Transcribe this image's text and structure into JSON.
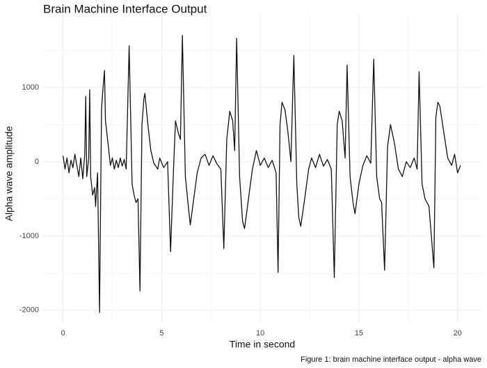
{
  "chart_data": {
    "type": "line",
    "title": "Brain Machine Interface Output",
    "x_label": "Time in second",
    "y_label": "Alpha wave amplitude",
    "caption": "Figure 1: brain machine interface output - alpha wave",
    "xlim": [
      -1.01,
      21.21
    ],
    "ylim": [
      -2170,
      1990
    ],
    "xticks": [
      0,
      5,
      10,
      15,
      20
    ],
    "yticks": [
      -2000,
      -1000,
      0,
      1000
    ],
    "minor_xticks": [
      2.5,
      7.5,
      12.5,
      17.5
    ],
    "minor_yticks": [
      -1500,
      -500,
      500,
      1500
    ],
    "grid": true,
    "x": [
      0,
      0.1,
      0.2,
      0.3,
      0.4,
      0.5,
      0.6,
      0.7,
      0.8,
      0.9,
      1.0,
      1.1,
      1.15,
      1.2,
      1.3,
      1.35,
      1.4,
      1.5,
      1.6,
      1.65,
      1.75,
      1.85,
      1.95,
      2.0,
      2.1,
      2.15,
      2.3,
      2.4,
      2.5,
      2.6,
      2.7,
      2.8,
      2.9,
      3.0,
      3.1,
      3.2,
      3.35,
      3.5,
      3.6,
      3.7,
      3.8,
      3.9,
      4.0,
      4.1,
      4.15,
      4.3,
      4.45,
      4.6,
      4.8,
      4.9,
      5.1,
      5.3,
      5.45,
      5.6,
      5.7,
      5.85,
      5.95,
      6.05,
      6.2,
      6.35,
      6.45,
      6.6,
      6.8,
      7.0,
      7.2,
      7.4,
      7.6,
      7.8,
      8.0,
      8.15,
      8.3,
      8.45,
      8.6,
      8.7,
      8.8,
      8.95,
      9.1,
      9.2,
      9.4,
      9.6,
      9.8,
      10.0,
      10.2,
      10.4,
      10.6,
      10.8,
      10.9,
      11.0,
      11.1,
      11.25,
      11.4,
      11.55,
      11.7,
      11.85,
      11.95,
      12.05,
      12.25,
      12.45,
      12.6,
      12.8,
      13.0,
      13.2,
      13.4,
      13.6,
      13.75,
      13.9,
      14.0,
      14.15,
      14.3,
      14.4,
      14.55,
      14.7,
      14.8,
      15.0,
      15.2,
      15.4,
      15.6,
      15.75,
      15.9,
      16.05,
      16.15,
      16.3,
      16.45,
      16.6,
      16.8,
      17.0,
      17.2,
      17.4,
      17.6,
      17.8,
      17.95,
      18.05,
      18.2,
      18.35,
      18.55,
      18.8,
      18.9,
      19.0,
      19.1,
      19.3,
      19.5,
      19.7,
      19.85,
      20.0,
      20.15
    ],
    "series": [
      {
        "color": "#111111",
        "values": [
          80,
          -100,
          50,
          -150,
          20,
          -80,
          100,
          -50,
          -200,
          50,
          -230,
          100,
          880,
          -200,
          50,
          970,
          -200,
          -450,
          -350,
          -600,
          -150,
          -2030,
          700,
          900,
          1230,
          550,
          200,
          -50,
          50,
          -100,
          20,
          -80,
          50,
          -60,
          30,
          -100,
          1560,
          -300,
          -450,
          -550,
          -500,
          -1740,
          500,
          850,
          920,
          500,
          150,
          -20,
          -100,
          50,
          -80,
          0,
          -1210,
          -100,
          550,
          380,
          300,
          1700,
          -200,
          -600,
          -850,
          -550,
          -150,
          50,
          100,
          -50,
          80,
          -30,
          -100,
          -1170,
          300,
          680,
          550,
          150,
          1660,
          -200,
          -800,
          -900,
          -500,
          -100,
          150,
          -50,
          50,
          -80,
          20,
          -150,
          -1490,
          500,
          800,
          700,
          400,
          0,
          1430,
          -300,
          -750,
          -870,
          -500,
          -100,
          50,
          -80,
          100,
          -60,
          30,
          -100,
          -1560,
          500,
          680,
          550,
          50,
          1300,
          -200,
          -550,
          -700,
          -300,
          -50,
          80,
          -20,
          1380,
          -200,
          -500,
          -550,
          -1460,
          200,
          500,
          250,
          -100,
          -200,
          0,
          -80,
          50,
          -100,
          1210,
          -300,
          -500,
          -600,
          -1430,
          600,
          800,
          750,
          400,
          50,
          -50,
          100,
          -150,
          -50
        ]
      }
    ]
  }
}
